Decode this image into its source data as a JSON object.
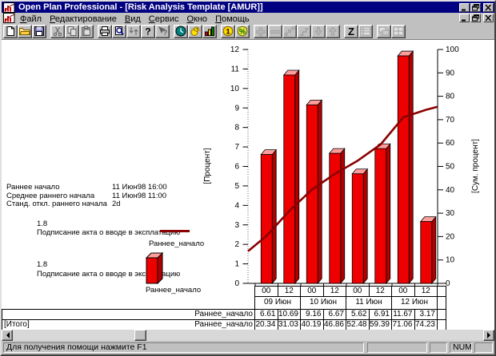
{
  "window": {
    "title": "Open Plan Professional - [Risk Analysis Template [AMUR]]"
  },
  "menu": {
    "items": [
      {
        "label": "Файл",
        "accel": 0
      },
      {
        "label": "Редактирование",
        "accel": 0
      },
      {
        "label": "Вид",
        "accel": 0
      },
      {
        "label": "Сервис",
        "accel": 0
      },
      {
        "label": "Окно",
        "accel": 0
      },
      {
        "label": "Помощь",
        "accel": 0
      }
    ]
  },
  "toolbar": {
    "groups": [
      [
        {
          "name": "new-document",
          "enabled": true
        },
        {
          "name": "open-folder",
          "enabled": true
        },
        {
          "name": "save-floppy",
          "enabled": true
        }
      ],
      [
        {
          "name": "cut",
          "enabled": false
        },
        {
          "name": "copy",
          "enabled": false
        },
        {
          "name": "paste",
          "enabled": false
        }
      ],
      [
        {
          "name": "print",
          "enabled": true
        },
        {
          "name": "print-preview",
          "enabled": true
        },
        {
          "name": "import-export",
          "enabled": false
        },
        {
          "name": "help",
          "enabled": true
        },
        {
          "name": "context-help",
          "enabled": false
        }
      ],
      [
        {
          "name": "time-clock",
          "enabled": true
        },
        {
          "name": "resource-bird",
          "enabled": true
        },
        {
          "name": "risk-histogram",
          "enabled": true
        }
      ],
      [
        {
          "name": "cost-coin",
          "enabled": true
        },
        {
          "name": "percent",
          "enabled": true
        }
      ],
      [
        {
          "name": "plus",
          "enabled": false
        },
        {
          "name": "minus",
          "enabled": false
        },
        {
          "name": "link-nodes",
          "enabled": false
        },
        {
          "name": "step-link",
          "enabled": false
        },
        {
          "name": "arrow-down",
          "enabled": false
        },
        {
          "name": "arrow-up",
          "enabled": false
        }
      ],
      [
        {
          "name": "sort-z",
          "enabled": true
        },
        {
          "name": "table-layout",
          "enabled": false
        }
      ],
      [
        {
          "name": "window-cascade",
          "enabled": false
        },
        {
          "name": "window-tile",
          "enabled": false
        }
      ]
    ]
  },
  "stats": {
    "rows": [
      {
        "label": "Раннее начало",
        "value": "11 Июн98 16:00"
      },
      {
        "label": "Среднее раннего начала",
        "value": "11 Июн98 11:00"
      },
      {
        "label": "Станд. откл.  раннего начала",
        "value": "2d"
      }
    ]
  },
  "legend": {
    "line_item": {
      "code": "1.8",
      "activity": "Подписание акта о вводе в эксплатацию",
      "series": "Раннее_начало"
    },
    "bar_item": {
      "code": "1.8",
      "activity": "Подписание акта о вводе в эксплатацию",
      "series": "Раннее_начало"
    }
  },
  "chart_data": {
    "type": "bar",
    "title": "",
    "ylabel_left": "[Процент]",
    "ylabel_right": "[Сум. процент]",
    "ylim_left": [
      0,
      12
    ],
    "ytick_step_left": 1,
    "ylim_right": [
      0,
      100
    ],
    "ytick_step_right": 10,
    "grid": false,
    "legend_position": "left",
    "x_time_labels": [
      "00",
      "12",
      "00",
      "12",
      "00",
      "12",
      "00",
      "12"
    ],
    "x_date_labels": [
      "09 Июн",
      "10 Июн",
      "11 Июн",
      "12 Июн"
    ],
    "series": [
      {
        "name": "Раннее_начало",
        "type": "bar",
        "axis": "left",
        "color": "#ee0000",
        "color_top": "#ff9c9c",
        "color_side": "#b00000",
        "values": [
          6.61,
          10.69,
          9.16,
          6.67,
          5.62,
          6.91,
          11.67,
          3.17
        ]
      },
      {
        "name": "Раннее_начало",
        "type": "line",
        "axis": "right",
        "color": "#8b0000",
        "start_value": 13.73,
        "end_value": 75.5,
        "values": [
          20.34,
          31.03,
          40.19,
          46.86,
          52.48,
          59.39,
          71.06,
          74.23
        ]
      }
    ],
    "table_row_labels": {
      "bar_row": "Раннее_начало",
      "total_row_left": "[Итого]",
      "total_row": "Раннее_начало"
    }
  },
  "statusbar": {
    "message": "Для получения помощи нажмите F1",
    "num": "NUM"
  },
  "colors": {
    "titlebar": "#000080",
    "bar": "#ee0000",
    "cumulative_line": "#8b0000"
  }
}
